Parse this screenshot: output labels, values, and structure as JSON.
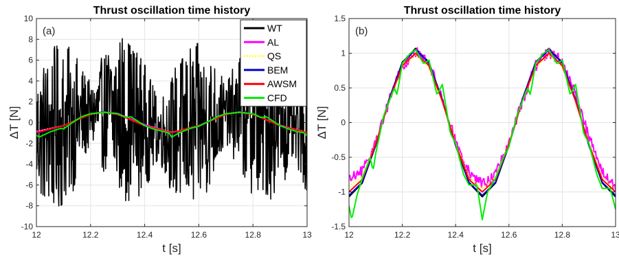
{
  "chart_data": [
    {
      "type": "line",
      "panel_label": "(a)",
      "title": "Thrust oscillation time history",
      "xlabel": "t [s]",
      "ylabel": "ΔT [N]",
      "xlim": [
        12,
        13
      ],
      "ylim": [
        -10,
        10
      ],
      "xticks": [
        12,
        12.2,
        12.4,
        12.6,
        12.8,
        13
      ],
      "xtick_labels": [
        "12",
        "12.2",
        "12.4",
        "12.6",
        "12.8",
        "13"
      ],
      "yticks": [
        -10,
        -8,
        -6,
        -4,
        -2,
        0,
        2,
        4,
        6,
        8,
        10
      ],
      "ytick_labels": [
        "-10",
        "-8",
        "-6",
        "-4",
        "-2",
        "0",
        "2",
        "4",
        "6",
        "8",
        "10"
      ],
      "grid": true,
      "legend_position": "top-right",
      "series": [
        {
          "name": "WT",
          "color": "#000000",
          "style": "solid",
          "description_noise_amplitude": 6,
          "x": [
            12.0,
            12.05,
            12.1,
            12.15,
            12.2,
            12.25,
            12.3,
            12.35,
            12.4,
            12.45,
            12.5,
            12.55,
            12.6,
            12.65,
            12.7,
            12.75,
            12.8,
            12.85,
            12.9,
            12.95,
            13.0
          ],
          "y": [
            -1.0,
            -0.85,
            -0.31,
            0.31,
            0.81,
            1.0,
            0.81,
            0.31,
            -0.31,
            -0.81,
            -1.0,
            -0.81,
            -0.31,
            0.31,
            0.81,
            1.0,
            0.81,
            0.31,
            -0.31,
            -0.81,
            -1.0
          ]
        },
        {
          "name": "AL",
          "color": "#ff00ff",
          "style": "solid",
          "x": [
            12.0,
            12.1,
            12.2,
            12.25,
            12.3,
            12.4,
            12.5,
            12.6,
            12.7,
            12.75,
            12.8,
            12.9,
            13.0
          ],
          "y": [
            -0.85,
            -0.3,
            0.85,
            1.02,
            0.88,
            -0.2,
            -0.95,
            -0.35,
            0.85,
            1.0,
            0.82,
            -0.25,
            -0.95
          ]
        },
        {
          "name": "QS",
          "color": "#ffff00",
          "style": "dotted",
          "x": [
            12.0,
            12.1,
            12.2,
            12.25,
            12.3,
            12.4,
            12.5,
            12.6,
            12.7,
            12.75,
            12.8,
            12.9,
            13.0
          ],
          "y": [
            -0.9,
            -0.3,
            0.8,
            0.98,
            0.8,
            -0.3,
            -0.95,
            -0.3,
            0.8,
            0.98,
            0.8,
            -0.3,
            -0.95
          ]
        },
        {
          "name": "BEM",
          "color": "#0000c8",
          "style": "solid",
          "x": [
            12.0,
            12.1,
            12.2,
            12.25,
            12.3,
            12.4,
            12.5,
            12.6,
            12.7,
            12.75,
            12.8,
            12.9,
            13.0
          ],
          "y": [
            -1.02,
            -0.31,
            0.81,
            1.05,
            0.81,
            -0.31,
            -1.02,
            -0.31,
            0.81,
            1.05,
            0.81,
            -0.31,
            -1.02
          ]
        },
        {
          "name": "AWSM",
          "color": "#ff0000",
          "style": "solid",
          "x": [
            12.0,
            12.1,
            12.2,
            12.25,
            12.3,
            12.4,
            12.5,
            12.6,
            12.7,
            12.75,
            12.8,
            12.9,
            13.0
          ],
          "y": [
            -0.98,
            -0.3,
            0.8,
            1.0,
            0.8,
            -0.3,
            -0.98,
            -0.3,
            0.8,
            1.0,
            0.8,
            -0.3,
            -0.98
          ]
        },
        {
          "name": "CFD",
          "color": "#00ee00",
          "style": "solid",
          "x": [
            12.0,
            12.01,
            12.05,
            12.09,
            12.1,
            12.15,
            12.17,
            12.2,
            12.25,
            12.3,
            12.33,
            12.35,
            12.4,
            12.43,
            12.46,
            12.49,
            12.5,
            12.53,
            12.57,
            12.6,
            12.65,
            12.67,
            12.7,
            12.75,
            12.8,
            12.83,
            12.85,
            12.9,
            12.93,
            12.96,
            12.99,
            13.0
          ],
          "y": [
            -1.2,
            -1.4,
            -0.9,
            -0.55,
            -0.6,
            0.3,
            0.6,
            0.85,
            1.0,
            0.85,
            0.5,
            0.55,
            -0.3,
            -0.6,
            -0.8,
            -1.0,
            -1.4,
            -0.95,
            -0.55,
            -0.35,
            0.3,
            0.6,
            0.85,
            1.0,
            0.85,
            0.5,
            0.55,
            -0.3,
            -0.6,
            -0.85,
            -1.0,
            -1.25
          ]
        }
      ]
    },
    {
      "type": "line",
      "panel_label": "(b)",
      "title": "Thrust oscillation time history",
      "xlabel": "t [s]",
      "ylabel": "ΔT [N]",
      "xlim": [
        12,
        13
      ],
      "ylim": [
        -1.5,
        1.5
      ],
      "xticks": [
        12,
        12.2,
        12.4,
        12.6,
        12.8,
        13
      ],
      "xtick_labels": [
        "12",
        "12.2",
        "12.4",
        "12.6",
        "12.8",
        "13"
      ],
      "yticks": [
        -1.5,
        -1,
        -0.5,
        0,
        0.5,
        1,
        1.5
      ],
      "ytick_labels": [
        "-1.5",
        "-1",
        "-0.5",
        "0",
        "0.5",
        "1",
        "1.5"
      ],
      "grid": true,
      "series": [
        {
          "name": "WT",
          "color": "#000000",
          "style": "solid",
          "x": [
            12.0,
            12.05,
            12.1,
            12.15,
            12.2,
            12.25,
            12.3,
            12.35,
            12.4,
            12.45,
            12.5,
            12.55,
            12.6,
            12.65,
            12.7,
            12.75,
            12.8,
            12.85,
            12.9,
            12.95,
            13.0
          ],
          "y": [
            -1.07,
            -0.87,
            -0.33,
            0.33,
            0.87,
            1.07,
            0.87,
            0.33,
            -0.33,
            -0.87,
            -1.07,
            -0.87,
            -0.33,
            0.33,
            0.87,
            1.07,
            0.87,
            0.33,
            -0.33,
            -0.87,
            -1.07
          ]
        },
        {
          "name": "AL",
          "color": "#ff00ff",
          "style": "solid",
          "description_noise_amplitude": 0.08,
          "x": [
            12.0,
            12.05,
            12.1,
            12.15,
            12.2,
            12.25,
            12.3,
            12.35,
            12.4,
            12.45,
            12.5,
            12.55,
            12.6,
            12.65,
            12.7,
            12.75,
            12.8,
            12.85,
            12.9,
            12.95,
            13.0
          ],
          "y": [
            -0.82,
            -0.7,
            -0.3,
            0.3,
            0.82,
            1.02,
            0.85,
            0.35,
            -0.25,
            -0.72,
            -0.9,
            -0.75,
            -0.3,
            0.3,
            0.82,
            1.02,
            0.88,
            0.4,
            -0.2,
            -0.7,
            -0.95
          ]
        },
        {
          "name": "QS",
          "color": "#ffff00",
          "style": "dotted",
          "x": [
            12.0,
            12.05,
            12.1,
            12.15,
            12.2,
            12.25,
            12.3,
            12.35,
            12.4,
            12.45,
            12.5,
            12.55,
            12.6,
            12.65,
            12.7,
            12.75,
            12.8,
            12.85,
            12.9,
            12.95,
            13.0
          ],
          "y": [
            -0.92,
            -0.78,
            -0.3,
            0.3,
            0.8,
            0.98,
            0.8,
            0.3,
            -0.3,
            -0.78,
            -0.95,
            -0.78,
            -0.3,
            0.3,
            0.8,
            0.98,
            0.8,
            0.3,
            -0.3,
            -0.78,
            -0.95
          ]
        },
        {
          "name": "BEM",
          "color": "#0000c8",
          "style": "solid",
          "x": [
            12.0,
            12.05,
            12.1,
            12.15,
            12.2,
            12.25,
            12.3,
            12.35,
            12.4,
            12.45,
            12.5,
            12.55,
            12.6,
            12.65,
            12.7,
            12.75,
            12.8,
            12.85,
            12.9,
            12.95,
            13.0
          ],
          "y": [
            -1.05,
            -0.86,
            -0.33,
            0.33,
            0.86,
            1.05,
            0.86,
            0.33,
            -0.33,
            -0.86,
            -1.05,
            -0.86,
            -0.33,
            0.33,
            0.86,
            1.05,
            0.86,
            0.33,
            -0.33,
            -0.86,
            -1.05
          ]
        },
        {
          "name": "AWSM",
          "color": "#ff0000",
          "style": "solid",
          "x": [
            12.0,
            12.05,
            12.1,
            12.15,
            12.2,
            12.25,
            12.3,
            12.35,
            12.4,
            12.45,
            12.5,
            12.55,
            12.6,
            12.65,
            12.7,
            12.75,
            12.8,
            12.85,
            12.9,
            12.95,
            13.0
          ],
          "y": [
            -1.0,
            -0.82,
            -0.31,
            0.31,
            0.82,
            1.0,
            0.82,
            0.31,
            -0.31,
            -0.82,
            -1.0,
            -0.82,
            -0.31,
            0.31,
            0.82,
            1.0,
            0.82,
            0.31,
            -0.31,
            -0.82,
            -1.0
          ]
        },
        {
          "name": "CFD",
          "color": "#00ee00",
          "style": "solid",
          "x": [
            12.0,
            12.01,
            12.03,
            12.05,
            12.08,
            12.09,
            12.1,
            12.13,
            12.15,
            12.17,
            12.18,
            12.2,
            12.23,
            12.25,
            12.28,
            12.3,
            12.33,
            12.35,
            12.38,
            12.4,
            12.43,
            12.45,
            12.48,
            12.5,
            12.52,
            12.55,
            12.58,
            12.6,
            12.63,
            12.65,
            12.67,
            12.68,
            12.7,
            12.73,
            12.75,
            12.78,
            12.8,
            12.83,
            12.85,
            12.88,
            12.9,
            12.93,
            12.95,
            12.98,
            13.0
          ],
          "y": [
            -1.2,
            -1.4,
            -1.05,
            -0.8,
            -0.5,
            -0.7,
            -0.45,
            0.1,
            0.3,
            0.5,
            0.4,
            0.85,
            1.0,
            1.05,
            0.85,
            0.9,
            0.4,
            0.55,
            -0.15,
            -0.3,
            -0.75,
            -0.9,
            -0.9,
            -1.4,
            -1.0,
            -0.8,
            -0.5,
            -0.35,
            0.1,
            0.3,
            0.5,
            0.4,
            0.85,
            1.0,
            1.05,
            0.85,
            0.9,
            0.4,
            0.55,
            -0.15,
            -0.3,
            -0.75,
            -0.95,
            -0.95,
            -1.25
          ]
        }
      ]
    }
  ]
}
